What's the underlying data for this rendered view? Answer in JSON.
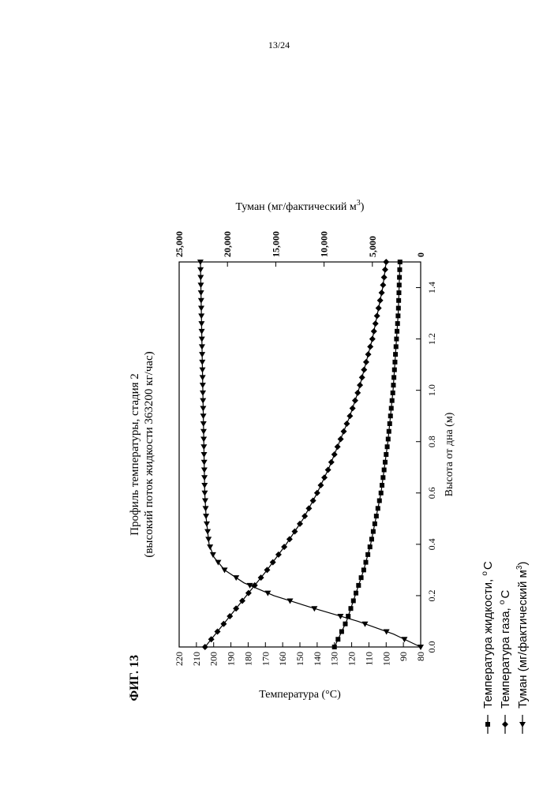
{
  "page": {
    "number": "13/24"
  },
  "figure": {
    "label": "ФИГ. 13"
  },
  "chart_data": {
    "type": "line",
    "title": "Профиль температуры, стадия 2",
    "subtitle": "(высокий поток жидкости 363200 кг/час)",
    "xlabel": "Высота от дна (м)",
    "ylabel_left": "Температура (°C)",
    "ylabel_right": "Туман (мг/фактический м",
    "ylabel_right_sup": "3",
    "ylabel_right_close": ")",
    "xlim": [
      0,
      1.5
    ],
    "x_ticks": [
      "0.0",
      "0.2",
      "0.4",
      "0.6",
      "0.8",
      "1.0",
      "1.2",
      "1.4"
    ],
    "ylim_left": [
      80,
      220
    ],
    "y_left_ticks": [
      "80",
      "90",
      "100",
      "110",
      "120",
      "130",
      "140",
      "150",
      "160",
      "170",
      "180",
      "190",
      "200",
      "210",
      "220"
    ],
    "ylim_right": [
      0,
      25000
    ],
    "y_right_ticks": [
      "0",
      "5,000",
      "10,000",
      "15,000",
      "20,000",
      "25,000"
    ],
    "grid": false,
    "legend_position": "bottom",
    "series": [
      {
        "name": "Температура  жидкости, ",
        "name_unit": "C",
        "marker": "square",
        "axis": "left",
        "x": [
          0.0,
          0.1,
          0.2,
          0.3,
          0.4,
          0.5,
          0.6,
          0.7,
          0.8,
          0.9,
          1.0,
          1.1,
          1.2,
          1.3,
          1.4,
          1.5
        ],
        "y": [
          130,
          123,
          118,
          113,
          109,
          106,
          103,
          101,
          99,
          97.5,
          96,
          95,
          94,
          93,
          92.5,
          92
        ]
      },
      {
        "name": "Температура газа, ",
        "name_unit": "C",
        "marker": "diamond",
        "axis": "left",
        "x": [
          0.0,
          0.1,
          0.2,
          0.3,
          0.4,
          0.5,
          0.6,
          0.7,
          0.8,
          0.9,
          1.0,
          1.1,
          1.2,
          1.3,
          1.4,
          1.5
        ],
        "y": [
          205,
          193,
          181,
          169,
          158,
          148,
          140,
          133,
          127,
          121,
          116,
          112,
          108,
          105,
          102,
          100
        ]
      },
      {
        "name": "Туман (мг/фактический м",
        "name_sup": "3",
        "name_close": ")",
        "marker": "triangle",
        "axis": "right",
        "x": [
          0.0,
          0.05,
          0.1,
          0.15,
          0.2,
          0.25,
          0.3,
          0.35,
          0.4,
          0.5,
          0.6,
          0.7,
          0.8,
          0.9,
          1.0,
          1.1,
          1.2,
          1.3,
          1.4,
          1.5
        ],
        "y": [
          0,
          2800,
          6500,
          11000,
          15200,
          18300,
          20300,
          21400,
          21900,
          22200,
          22350,
          22400,
          22450,
          22500,
          22550,
          22600,
          22650,
          22700,
          22750,
          22800
        ]
      }
    ]
  }
}
